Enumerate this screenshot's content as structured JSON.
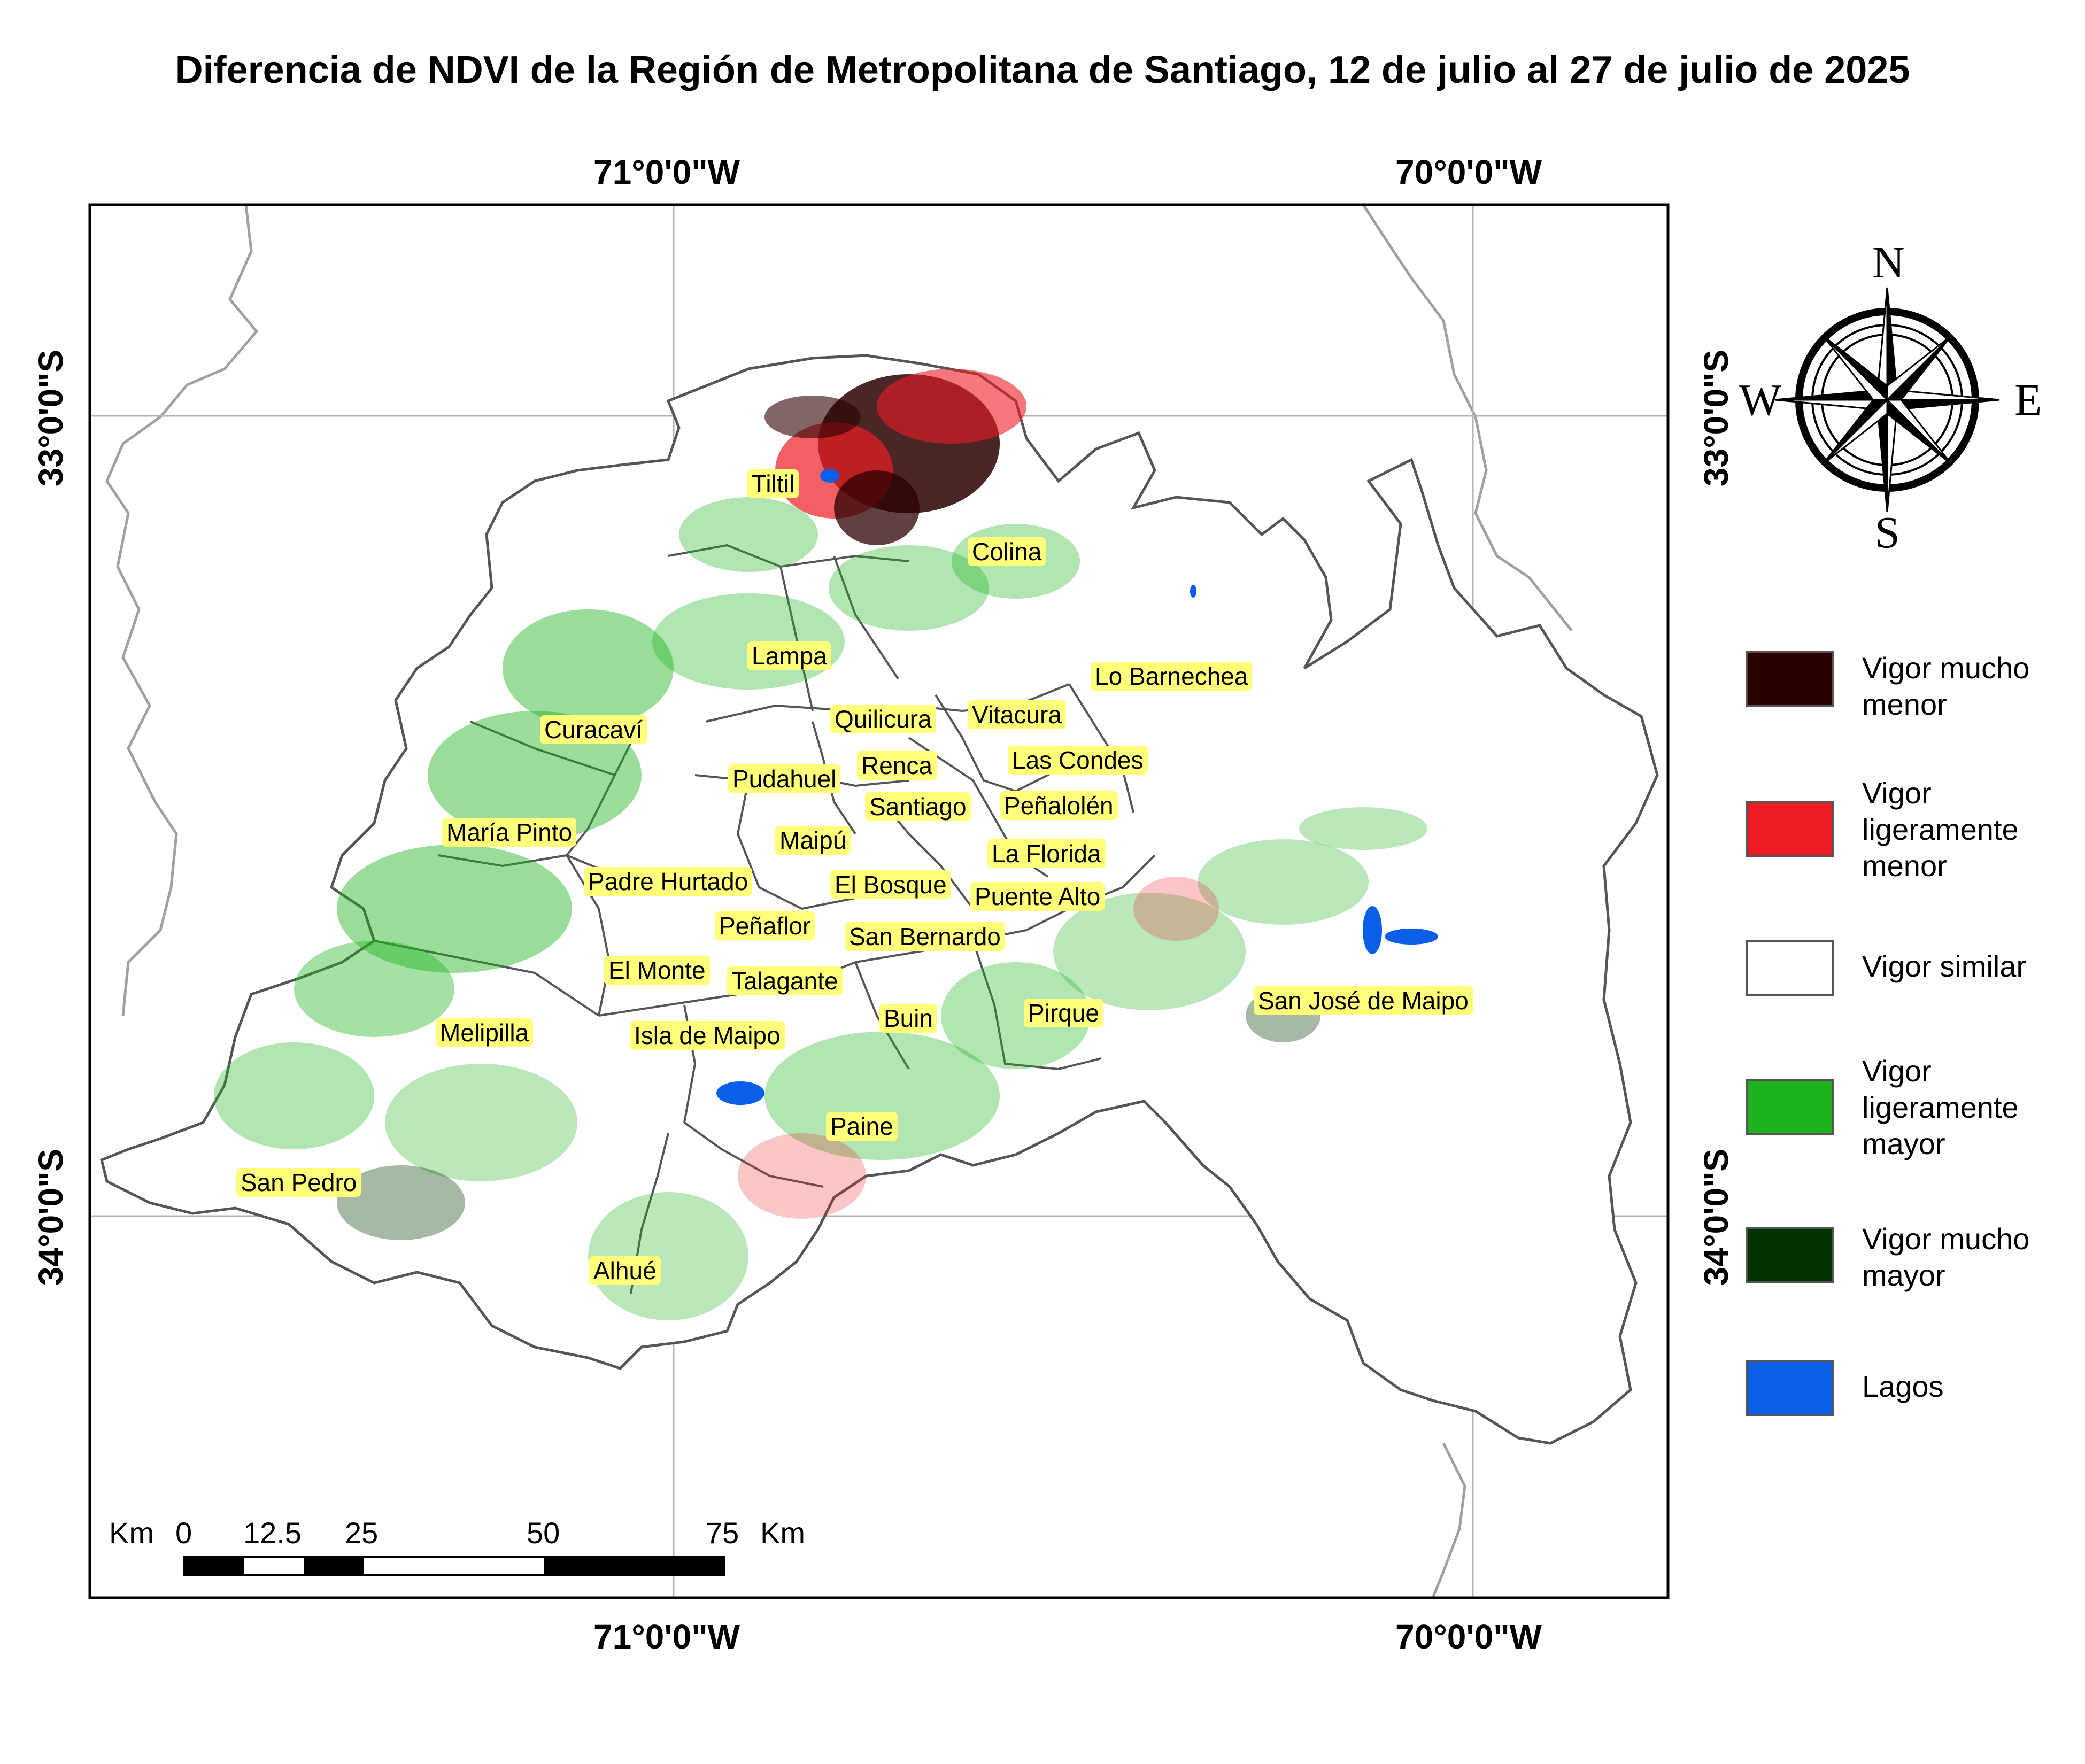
{
  "title": "Diferencia de NDVI de la Región de Metropolitana de Santiago, 12 de julio al 27 de julio de 2025",
  "graticule": {
    "lon_labels": [
      "71°0'0\"W",
      "70°0'0\"W"
    ],
    "lat_labels": [
      "33°0'0\"S",
      "34°0'0\"S"
    ]
  },
  "compass": {
    "n": "N",
    "s": "S",
    "e": "E",
    "w": "W"
  },
  "legend": [
    {
      "label": "Vigor mucho menor",
      "color": "#2b0000"
    },
    {
      "label": "Vigor ligeramente menor",
      "color": "#ed1c24"
    },
    {
      "label": "Vigor similar",
      "color": "#ffffff"
    },
    {
      "label": "Vigor ligeramente mayor",
      "color": "#1fb41f"
    },
    {
      "label": "Vigor mucho mayor",
      "color": "#003300"
    },
    {
      "label": "Lagos",
      "color": "#0a5ee8"
    }
  ],
  "scale_bar": {
    "unit_left": "Km",
    "unit_right": "Km",
    "ticks": [
      "0",
      "12.5",
      "25",
      "50",
      "75"
    ]
  },
  "communes": [
    "Tiltil",
    "Colina",
    "Lampa",
    "Lo Barnechea",
    "Curacaví",
    "Quilicura",
    "Vitacura",
    "Las Condes",
    "Pudahuel",
    "Renca",
    "Santiago",
    "Peñalolén",
    "María Pinto",
    "Maipú",
    "La Florida",
    "Padre Hurtado",
    "El Bosque",
    "Puente Alto",
    "Peñaflor",
    "San Bernardo",
    "El Monte",
    "Talagante",
    "San José de Maipo",
    "Buin",
    "Pirque",
    "Melipilla",
    "Isla de Maipo",
    "Paine",
    "San Pedro",
    "Alhué"
  ]
}
